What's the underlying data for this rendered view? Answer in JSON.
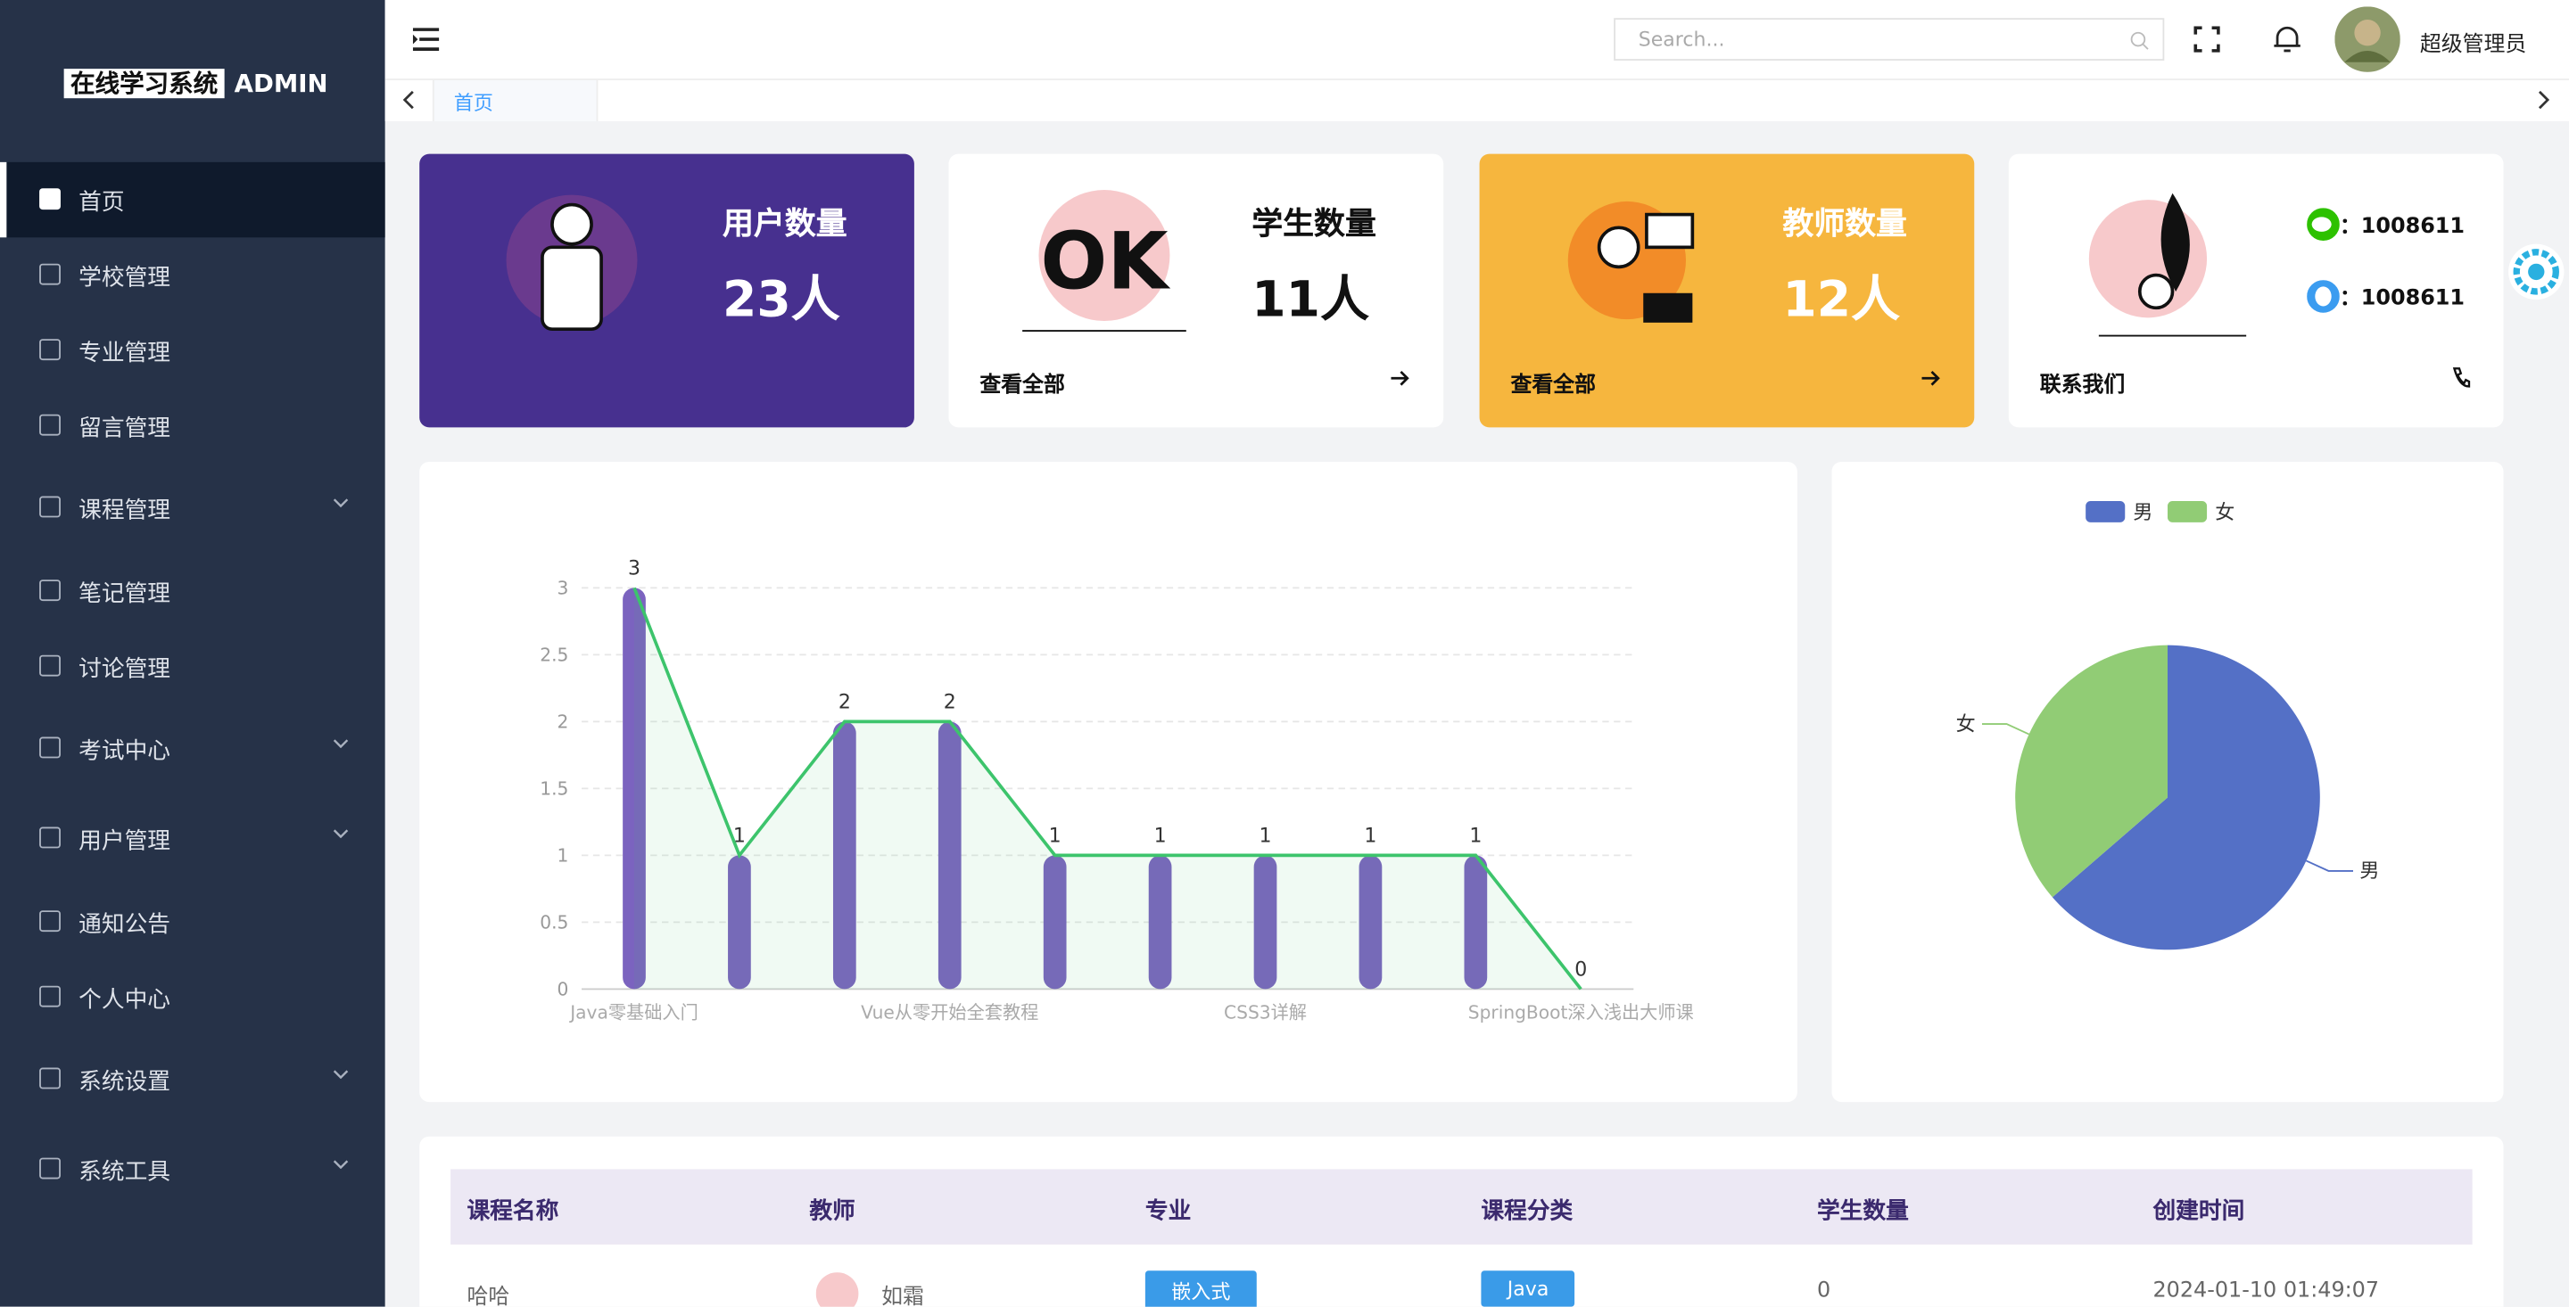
{
  "sidebar": {
    "logo": "在线学习系统",
    "logo_suffix": "ADMIN",
    "menu": [
      {
        "label": "首页",
        "active": true
      },
      {
        "label": "学校管理"
      },
      {
        "label": "专业管理"
      },
      {
        "label": "留言管理"
      },
      {
        "label": "课程管理",
        "dropdown": true
      },
      {
        "label": "笔记管理"
      },
      {
        "label": "讨论管理"
      },
      {
        "label": "考试中心",
        "dropdown": true
      },
      {
        "label": "用户管理",
        "dropdown": true
      },
      {
        "label": "通知公告"
      },
      {
        "label": "个人中心"
      },
      {
        "label": "系统设置",
        "dropdown": true
      },
      {
        "label": "系统工具",
        "dropdown": true
      }
    ]
  },
  "header": {
    "search_placeholder": "Search...",
    "user": "超级管理员"
  },
  "tabs": [
    "首页"
  ],
  "cards": [
    {
      "title": "用户数量",
      "value": "23人"
    },
    {
      "title": "学生数量",
      "value": "11人",
      "link": "查看全部"
    },
    {
      "title": "教师数量",
      "value": "12人",
      "link": "查看全部"
    }
  ],
  "contact": {
    "items": [
      "：1008611",
      "：1008611"
    ],
    "link": "联系我们"
  },
  "chart_data": [
    {
      "type": "bar",
      "categories": [
        "Java零基础入门",
        null,
        null,
        "Vue从零开始全套教程",
        null,
        null,
        "CSS3详解",
        null,
        null,
        "SpringBoot深入浅出大师课"
      ],
      "series": [
        {
          "type": "bar",
          "color": "#7b63bf",
          "values": [
            3,
            1,
            2,
            2,
            1,
            1,
            1,
            1,
            1,
            0
          ]
        },
        {
          "type": "line",
          "color": "#3dc46c",
          "values": [
            3,
            1,
            2,
            2,
            1,
            1,
            1,
            1,
            1,
            0
          ]
        }
      ],
      "ylim": [
        0,
        3
      ],
      "yticks": [
        0,
        0.5,
        1,
        1.5,
        2,
        2.5,
        3
      ],
      "grid": true
    },
    {
      "type": "pie",
      "categories": [
        "男",
        "女"
      ],
      "values": [
        7,
        4
      ],
      "colors": [
        "#5470c6",
        "#91cc75"
      ],
      "legend": "top"
    }
  ],
  "table": {
    "columns": [
      "课程名称",
      "教师",
      "专业",
      "课程分类",
      "学生数量",
      "创建时间"
    ],
    "rows": [
      [
        "哈哈",
        "如霜",
        "嵌入式",
        "Java",
        "0",
        "2024-01-10  01:49:07"
      ]
    ]
  }
}
